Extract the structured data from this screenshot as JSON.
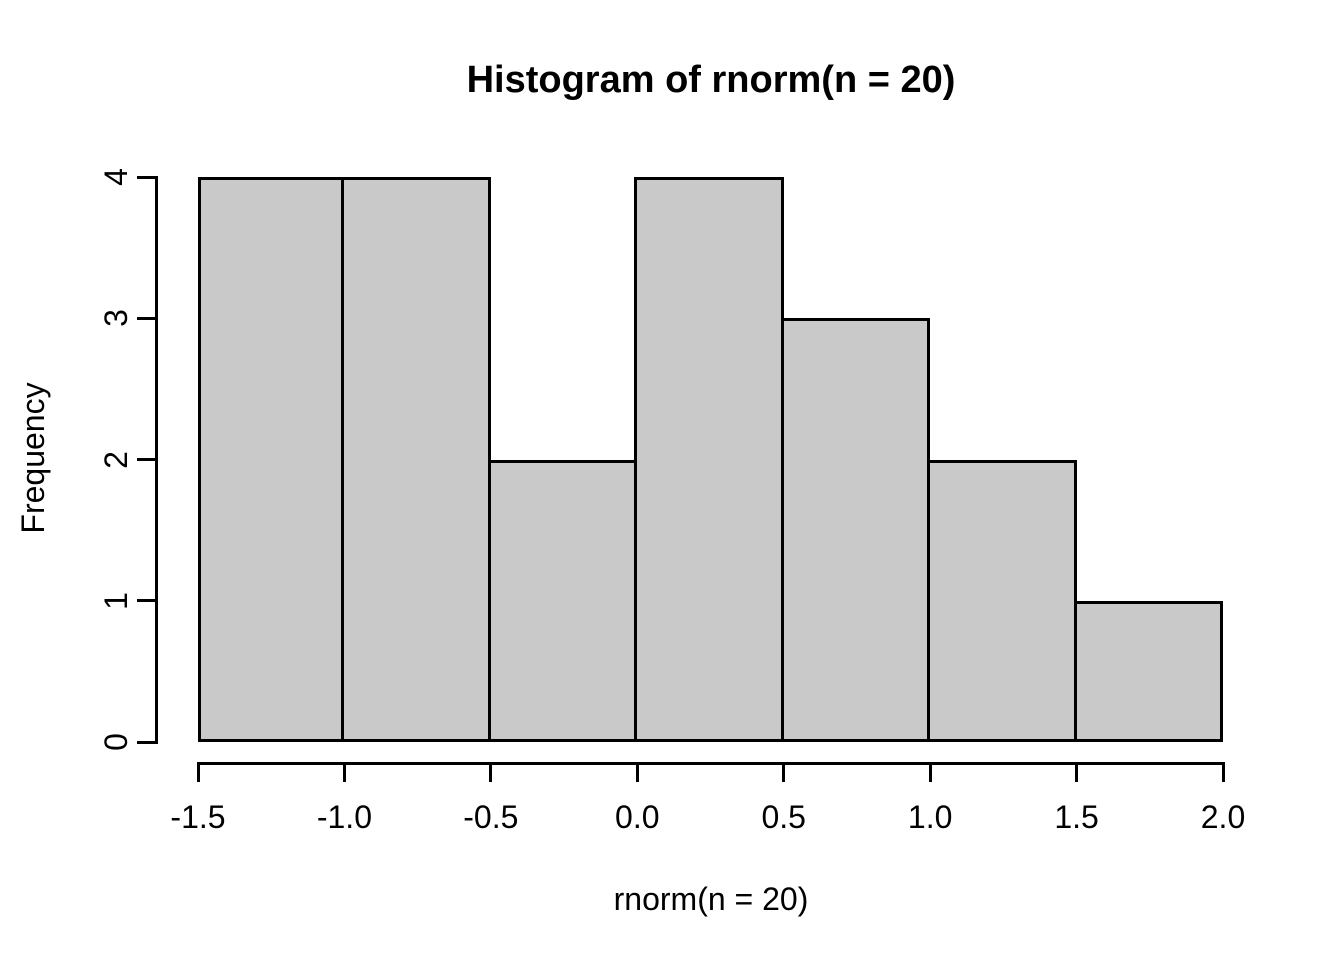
{
  "chart_data": {
    "type": "bar",
    "subtype": "histogram",
    "title": "Histogram of rnorm(n = 20)",
    "xlabel": "rnorm(n = 20)",
    "ylabel": "Frequency",
    "breaks": [
      -1.5,
      -1.0,
      -0.5,
      0.0,
      0.5,
      1.0,
      1.5,
      2.0
    ],
    "counts": [
      4,
      4,
      2,
      4,
      3,
      2,
      1
    ],
    "x_tick_labels": [
      "-1.5",
      "-1.0",
      "-0.5",
      "0.0",
      "0.5",
      "1.0",
      "1.5",
      "2.0"
    ],
    "y_tick_labels": [
      "0",
      "1",
      "2",
      "3",
      "4"
    ],
    "y_tick_values": [
      0,
      1,
      2,
      3,
      4
    ],
    "xlim": [
      -1.5,
      2.0
    ],
    "ylim": [
      0,
      4
    ],
    "grid": false,
    "legend": false,
    "colors": {
      "bar_fill": "#C9C9C9",
      "bar_border": "#000000",
      "axis": "#000000",
      "text": "#000000",
      "background": "#FFFFFF"
    }
  }
}
